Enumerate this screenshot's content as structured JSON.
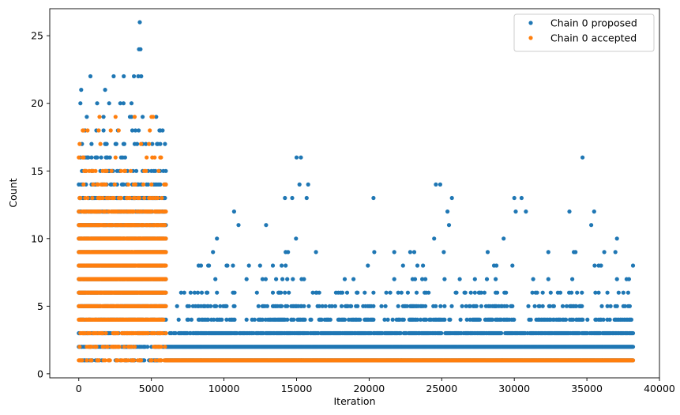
{
  "chart_data": {
    "type": "scatter",
    "title": "",
    "xlabel": "Iteration",
    "ylabel": "Count",
    "xlim": [
      -2000,
      40000
    ],
    "ylim": [
      -0.3,
      27
    ],
    "xticks": [
      0,
      5000,
      10000,
      15000,
      20000,
      25000,
      30000,
      35000,
      40000
    ],
    "xtick_labels": [
      "0",
      "5000",
      "10000",
      "15000",
      "20000",
      "25000",
      "30000",
      "35000",
      "40000"
    ],
    "yticks": [
      0,
      5,
      10,
      15,
      20,
      25
    ],
    "ytick_labels": [
      "0",
      "5",
      "10",
      "15",
      "20",
      "25"
    ],
    "grid": false,
    "legend_position": "top-right",
    "series": [
      {
        "name": "Chain 0 proposed",
        "color": "#1f77b4",
        "regions": [
          {
            "x_range": [
              0,
              6000
            ],
            "max_counts": [
              1,
              2,
              3,
              4,
              5,
              6,
              7,
              8,
              9,
              10,
              11,
              12,
              13,
              14,
              15,
              16,
              17,
              18,
              19,
              20,
              21,
              22
            ],
            "density": [
              0.45,
              0.55,
              0.7,
              0.85,
              0.9,
              0.95,
              0.95,
              0.95,
              0.95,
              0.95,
              0.9,
              0.8,
              0.55,
              0.35,
              0.25,
              0.2,
              0.12,
              0.08,
              0.05,
              0.03,
              0.02,
              0.01
            ]
          },
          {
            "x_range": [
              6000,
              38200
            ],
            "max_counts": [
              1,
              2,
              3,
              4,
              5,
              6,
              7,
              8,
              9,
              10
            ],
            "density": [
              1.0,
              1.0,
              0.8,
              0.6,
              0.35,
              0.15,
              0.08,
              0.05,
              0.03,
              0.02
            ]
          }
        ],
        "outliers": [
          {
            "x": 4200,
            "y": 26
          },
          {
            "x": 4150,
            "y": 24
          },
          {
            "x": 4250,
            "y": 24
          },
          {
            "x": 4100,
            "y": 22
          },
          {
            "x": 4300,
            "y": 22
          },
          {
            "x": 800,
            "y": 22
          },
          {
            "x": 2400,
            "y": 22
          },
          {
            "x": 3100,
            "y": 22
          },
          {
            "x": 3800,
            "y": 22
          },
          {
            "x": 15000,
            "y": 16
          },
          {
            "x": 15300,
            "y": 16
          },
          {
            "x": 34700,
            "y": 16
          },
          {
            "x": 15200,
            "y": 14
          },
          {
            "x": 15800,
            "y": 14
          },
          {
            "x": 24600,
            "y": 14
          },
          {
            "x": 24900,
            "y": 14
          },
          {
            "x": 20300,
            "y": 13
          },
          {
            "x": 25700,
            "y": 13
          },
          {
            "x": 30000,
            "y": 13
          },
          {
            "x": 30500,
            "y": 13
          },
          {
            "x": 14200,
            "y": 13
          },
          {
            "x": 14700,
            "y": 13
          },
          {
            "x": 10700,
            "y": 12
          },
          {
            "x": 33800,
            "y": 12
          },
          {
            "x": 35500,
            "y": 12
          },
          {
            "x": 25400,
            "y": 12
          },
          {
            "x": 30100,
            "y": 12
          },
          {
            "x": 30800,
            "y": 12
          },
          {
            "x": 15700,
            "y": 13
          },
          {
            "x": 12900,
            "y": 11
          },
          {
            "x": 11000,
            "y": 11
          },
          {
            "x": 25500,
            "y": 11
          },
          {
            "x": 35300,
            "y": 11
          }
        ]
      },
      {
        "name": "Chain 0 accepted",
        "color": "#ff7f0e",
        "regions": [
          {
            "x_range": [
              0,
              6000
            ],
            "max_counts": [
              1,
              2,
              3,
              4,
              5,
              6,
              7,
              8,
              9,
              10,
              11,
              12,
              13,
              14,
              15,
              16,
              17,
              18,
              19
            ],
            "density": [
              0.35,
              0.35,
              0.5,
              0.8,
              0.95,
              1.0,
              1.0,
              1.0,
              1.0,
              1.0,
              0.75,
              0.55,
              0.35,
              0.2,
              0.15,
              0.1,
              0.06,
              0.05,
              0.02
            ]
          },
          {
            "x_range": [
              6000,
              38200
            ],
            "max_counts": [
              1
            ],
            "density": [
              1.0
            ]
          }
        ],
        "outliers": []
      }
    ]
  }
}
